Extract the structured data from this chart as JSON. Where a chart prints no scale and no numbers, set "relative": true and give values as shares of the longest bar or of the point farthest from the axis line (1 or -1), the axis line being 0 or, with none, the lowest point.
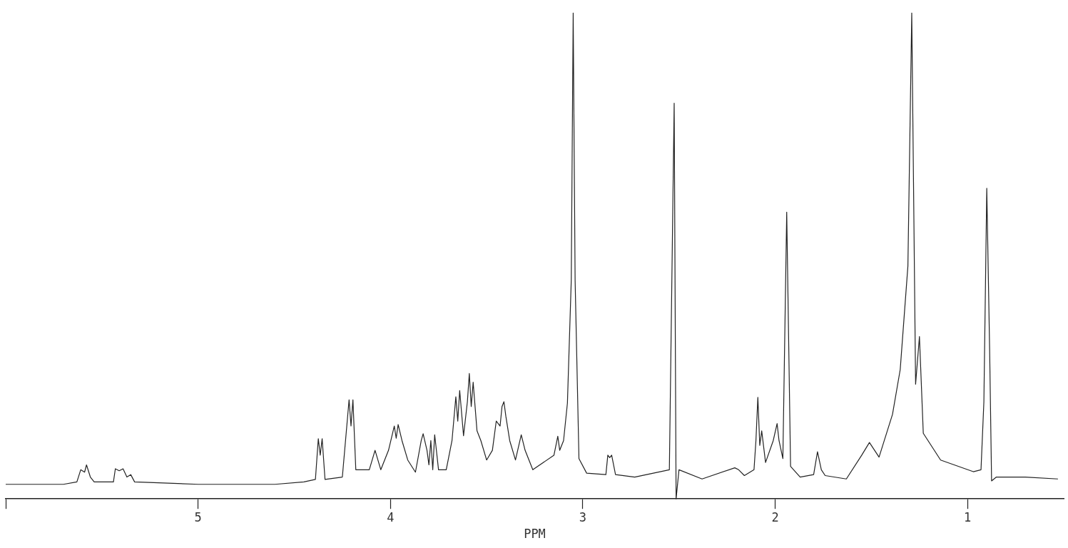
{
  "chart_data": {
    "type": "line",
    "relative": true,
    "xlabel": "PPM",
    "xlim": [
      6.0,
      0.5
    ],
    "xticks": [
      {
        "value": 6,
        "label": null
      },
      5,
      4,
      3,
      2,
      1
    ],
    "grid": false,
    "legend": false,
    "marker": "none",
    "line_style": "solid",
    "tick_labels": "x",
    "series": [
      {
        "color": "#222222",
        "x": [
          6.0,
          5.7,
          5.63,
          5.61,
          5.59,
          5.58,
          5.56,
          5.54,
          5.44,
          5.43,
          5.41,
          5.39,
          5.37,
          5.35,
          5.33,
          5.0,
          4.6,
          4.45,
          4.39,
          4.375,
          4.365,
          4.355,
          4.34,
          4.25,
          4.215,
          4.205,
          4.195,
          4.18,
          4.11,
          4.08,
          4.05,
          4.01,
          3.98,
          3.97,
          3.96,
          3.94,
          3.91,
          3.87,
          3.84,
          3.83,
          3.81,
          3.8,
          3.79,
          3.78,
          3.77,
          3.75,
          3.71,
          3.68,
          3.66,
          3.65,
          3.64,
          3.62,
          3.6,
          3.59,
          3.58,
          3.57,
          3.55,
          3.53,
          3.5,
          3.47,
          3.45,
          3.43,
          3.42,
          3.41,
          3.4,
          3.38,
          3.35,
          3.32,
          3.3,
          3.26,
          3.15,
          3.13,
          3.12,
          3.1,
          3.08,
          3.06,
          3.05,
          3.04,
          3.02,
          2.98,
          2.88,
          2.87,
          2.86,
          2.85,
          2.83,
          2.73,
          2.55,
          2.525,
          2.515,
          2.5,
          2.38,
          2.21,
          2.19,
          2.16,
          2.11,
          2.1,
          2.09,
          2.08,
          2.07,
          2.05,
          2.01,
          1.99,
          1.98,
          1.96,
          1.94,
          1.92,
          1.87,
          1.8,
          1.78,
          1.76,
          1.74,
          1.63,
          1.55,
          1.51,
          1.46,
          1.39,
          1.35,
          1.31,
          1.29,
          1.27,
          1.25,
          1.23,
          1.14,
          0.97,
          0.93,
          0.915,
          0.9,
          0.885,
          0.875,
          0.85,
          0.7,
          0.53
        ],
        "values": [
          0.03,
          0.03,
          0.035,
          0.06,
          0.055,
          0.07,
          0.045,
          0.035,
          0.035,
          0.062,
          0.058,
          0.062,
          0.045,
          0.05,
          0.035,
          0.03,
          0.03,
          0.035,
          0.04,
          0.124,
          0.09,
          0.124,
          0.04,
          0.045,
          0.204,
          0.15,
          0.204,
          0.06,
          0.06,
          0.1,
          0.06,
          0.1,
          0.15,
          0.125,
          0.153,
          0.12,
          0.08,
          0.055,
          0.12,
          0.134,
          0.1,
          0.07,
          0.12,
          0.06,
          0.132,
          0.06,
          0.06,
          0.12,
          0.21,
          0.16,
          0.223,
          0.13,
          0.2,
          0.258,
          0.19,
          0.24,
          0.14,
          0.12,
          0.08,
          0.1,
          0.16,
          0.15,
          0.19,
          0.2,
          0.17,
          0.12,
          0.08,
          0.132,
          0.1,
          0.06,
          0.09,
          0.129,
          0.1,
          0.12,
          0.197,
          0.45,
          1.0,
          0.45,
          0.083,
          0.053,
          0.05,
          0.09,
          0.085,
          0.09,
          0.05,
          0.045,
          0.06,
          0.814,
          0,
          0.06,
          0.041,
          0.064,
          0.06,
          0.048,
          0.06,
          0.12,
          0.209,
          0.11,
          0.14,
          0.075,
          0.12,
          0.155,
          0.12,
          0.083,
          0.59,
          0.067,
          0.045,
          0.05,
          0.097,
          0.06,
          0.048,
          0.041,
          0.09,
          0.116,
          0.086,
          0.174,
          0.266,
          0.479,
          1.0,
          0.236,
          0.334,
          0.135,
          0.08,
          0.056,
          0.06,
          0.2,
          0.639,
          0.304,
          0.037,
          0.045,
          0.045,
          0.041
        ]
      }
    ]
  }
}
